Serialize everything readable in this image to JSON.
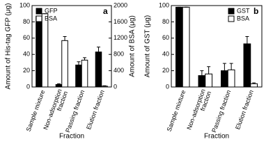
{
  "chart_data": [
    {
      "type": "bar",
      "panel_label": "a",
      "ylabel": "Amount of His-tag GFP (μg)",
      "y2label": "Amount of BSA (μg)",
      "xlabel": "Fraction",
      "categories": [
        "Sample mixture",
        "Non-adsorption fraction",
        "Passing fraction",
        "Elution fraction"
      ],
      "series": [
        {
          "name": "GFP",
          "color": "#000000",
          "values": [
            87,
            3,
            27,
            43
          ],
          "errors": [
            0,
            1,
            4,
            6
          ]
        },
        {
          "name": "BSA",
          "color": "#ffffff",
          "axis": "y2",
          "values": [
            1800,
            1140,
            660,
            20
          ],
          "errors": [
            0,
            100,
            60,
            10
          ]
        }
      ],
      "ylim": [
        0,
        100
      ],
      "yticks": [
        0,
        20,
        40,
        60,
        80,
        100
      ],
      "y2lim": [
        0,
        2000
      ],
      "y2ticks": [
        0,
        400,
        800,
        1200,
        1600,
        2000
      ],
      "legend": "upper left"
    },
    {
      "type": "bar",
      "panel_label": "b",
      "ylabel": "Amount of GST (μg)",
      "xlabel": "Fraction",
      "categories": [
        "Sample mixture",
        "Non-adsorption fraction",
        "Passing fraction",
        "Elution fraction"
      ],
      "series": [
        {
          "name": "GST",
          "color": "#000000",
          "values": [
            98,
            14,
            20,
            53
          ],
          "errors": [
            0,
            6,
            9,
            9
          ]
        },
        {
          "name": "BSA",
          "color": "#ffffff",
          "values": [
            98,
            16,
            21,
            4
          ],
          "errors": [
            0,
            9,
            8,
            1
          ]
        }
      ],
      "ylim": [
        0,
        100
      ],
      "yticks": [
        0,
        20,
        40,
        60,
        80,
        100
      ],
      "legend": "upper right"
    }
  ]
}
